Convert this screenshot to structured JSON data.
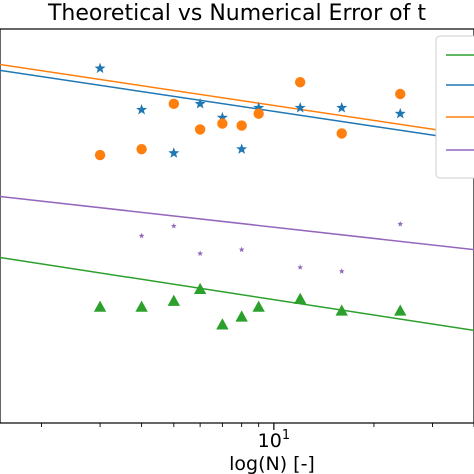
{
  "chart_data": {
    "type": "scatter",
    "title": "Theoretical vs Numerical Error of t",
    "xlabel": "log(N) [-]",
    "ylabel": "",
    "xscale": "log",
    "xlim": [
      1.5,
      40
    ],
    "ylim": [
      0,
      1
    ],
    "grid": false,
    "legend_position": "top-right",
    "x_ticks": [
      {
        "value": 10,
        "base": "10",
        "exponent": "1"
      }
    ],
    "series": [
      {
        "color": "#2ca02c",
        "marker": "triangle",
        "line": {
          "x": [
            1.5,
            40
          ],
          "y": [
            0.42,
            0.235
          ]
        },
        "points": [
          {
            "x": 3,
            "y": 0.295
          },
          {
            "x": 4,
            "y": 0.295
          },
          {
            "x": 5,
            "y": 0.31
          },
          {
            "x": 6,
            "y": 0.34
          },
          {
            "x": 7,
            "y": 0.25
          },
          {
            "x": 8,
            "y": 0.27
          },
          {
            "x": 9,
            "y": 0.295
          },
          {
            "x": 12,
            "y": 0.315
          },
          {
            "x": 16,
            "y": 0.285
          },
          {
            "x": 24,
            "y": 0.285
          }
        ]
      },
      {
        "color": "#1f77b4",
        "marker": "star",
        "line": {
          "x": [
            1.5,
            40
          ],
          "y": [
            0.895,
            0.715
          ]
        },
        "points": [
          {
            "x": 3,
            "y": 0.9
          },
          {
            "x": 4,
            "y": 0.795
          },
          {
            "x": 5,
            "y": 0.685
          },
          {
            "x": 6,
            "y": 0.81
          },
          {
            "x": 7,
            "y": 0.775
          },
          {
            "x": 8,
            "y": 0.695
          },
          {
            "x": 9,
            "y": 0.8
          },
          {
            "x": 12,
            "y": 0.8
          },
          {
            "x": 16,
            "y": 0.8
          },
          {
            "x": 24,
            "y": 0.785
          }
        ]
      },
      {
        "color": "#ff7f0e",
        "marker": "circle",
        "line": {
          "x": [
            1.5,
            40
          ],
          "y": [
            0.91,
            0.73
          ]
        },
        "points": [
          {
            "x": 3,
            "y": 0.68
          },
          {
            "x": 4,
            "y": 0.695
          },
          {
            "x": 5,
            "y": 0.81
          },
          {
            "x": 6,
            "y": 0.745
          },
          {
            "x": 7,
            "y": 0.76
          },
          {
            "x": 8,
            "y": 0.755
          },
          {
            "x": 9,
            "y": 0.785
          },
          {
            "x": 12,
            "y": 0.865
          },
          {
            "x": 16,
            "y": 0.735
          },
          {
            "x": 24,
            "y": 0.835
          }
        ]
      },
      {
        "color": "#9467bd",
        "marker": "small-star",
        "line": {
          "x": [
            1.5,
            40
          ],
          "y": [
            0.575,
            0.44
          ]
        },
        "points": [
          {
            "x": 4,
            "y": 0.475
          },
          {
            "x": 5,
            "y": 0.5
          },
          {
            "x": 6,
            "y": 0.43
          },
          {
            "x": 8,
            "y": 0.44
          },
          {
            "x": 12,
            "y": 0.395
          },
          {
            "x": 16,
            "y": 0.385
          },
          {
            "x": 24,
            "y": 0.505
          }
        ]
      }
    ],
    "legend": {
      "entries": [
        {
          "color": "#2ca02c",
          "label": ""
        },
        {
          "color": "#1f77b4",
          "label": ""
        },
        {
          "color": "#ff7f0e",
          "label": ""
        },
        {
          "color": "#9467bd",
          "label": ""
        }
      ]
    }
  }
}
